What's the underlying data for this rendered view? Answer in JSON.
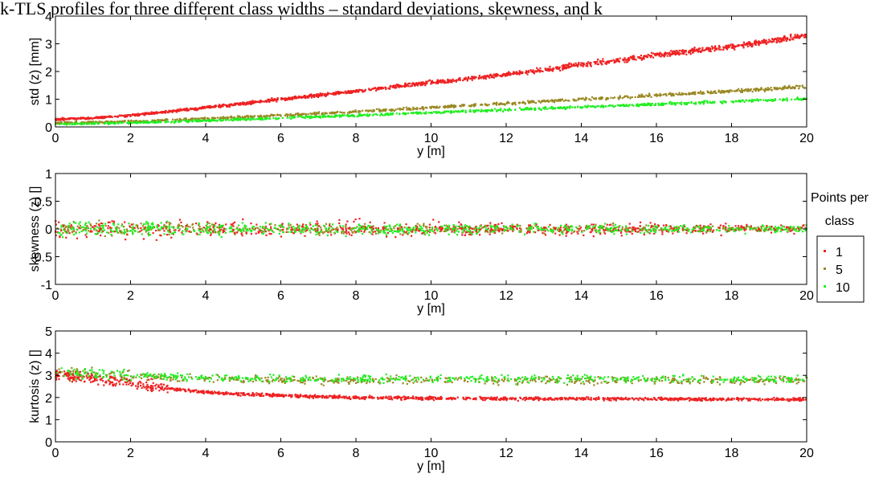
{
  "title": "k-TLS profiles for three different class widths – standard deviations, skewness, and k",
  "legend": {
    "title_line1": "Points per",
    "title_line2": "class",
    "entries": [
      {
        "label": "1",
        "color": "#ee2222"
      },
      {
        "label": "5",
        "color": "#998822"
      },
      {
        "label": "10",
        "color": "#22ee22"
      }
    ]
  },
  "chart_data": [
    {
      "type": "scatter",
      "xlabel": "y [m]",
      "ylabel": "std (z) [mm]",
      "xlim": [
        0,
        20
      ],
      "ylim": [
        0,
        4
      ],
      "xticks": [
        0,
        2,
        4,
        6,
        8,
        10,
        12,
        14,
        16,
        18,
        20
      ],
      "yticks": [
        0,
        1,
        2,
        3,
        4
      ],
      "series": [
        {
          "name": "1",
          "color": "#ee2222",
          "x": [
            0,
            1,
            2,
            3,
            4,
            5,
            6,
            7,
            8,
            9,
            10,
            11,
            12,
            13,
            14,
            15,
            16,
            17,
            18,
            19,
            20
          ],
          "y": [
            0.28,
            0.32,
            0.42,
            0.55,
            0.7,
            0.85,
            1.0,
            1.15,
            1.3,
            1.45,
            1.6,
            1.75,
            1.9,
            2.05,
            2.25,
            2.4,
            2.6,
            2.75,
            2.9,
            3.1,
            3.3
          ]
        },
        {
          "name": "5",
          "color": "#998822",
          "x": [
            0,
            2,
            4,
            6,
            8,
            10,
            12,
            14,
            16,
            18,
            20
          ],
          "y": [
            0.15,
            0.2,
            0.3,
            0.42,
            0.55,
            0.7,
            0.85,
            1.0,
            1.15,
            1.3,
            1.45
          ]
        },
        {
          "name": "10",
          "color": "#22ee22",
          "x": [
            0,
            2,
            4,
            6,
            8,
            10,
            12,
            14,
            16,
            18,
            20
          ],
          "y": [
            0.1,
            0.15,
            0.23,
            0.32,
            0.42,
            0.52,
            0.62,
            0.72,
            0.82,
            0.92,
            1.02
          ]
        }
      ]
    },
    {
      "type": "scatter",
      "xlabel": "y [m]",
      "ylabel": "skewness (z) []",
      "xlim": [
        0,
        20
      ],
      "ylim": [
        -1,
        1
      ],
      "xticks": [
        0,
        2,
        4,
        6,
        8,
        10,
        12,
        14,
        16,
        18,
        20
      ],
      "yticks": [
        -1,
        -0.5,
        0,
        0.5,
        1
      ],
      "series": [
        {
          "name": "1",
          "color": "#ee2222",
          "x": [
            0,
            20
          ],
          "y": [
            0.0,
            0.0
          ],
          "spread": [
            0.15,
            0.08
          ]
        },
        {
          "name": "5",
          "color": "#998822",
          "x": [
            0,
            20
          ],
          "y": [
            0.0,
            0.0
          ],
          "spread": [
            0.1,
            0.05
          ]
        },
        {
          "name": "10",
          "color": "#22ee22",
          "x": [
            0,
            20
          ],
          "y": [
            0.0,
            0.0
          ],
          "spread": [
            0.12,
            0.06
          ]
        }
      ]
    },
    {
      "type": "scatter",
      "xlabel": "y [m]",
      "ylabel": "kurtosis (z) []",
      "xlim": [
        0,
        20
      ],
      "ylim": [
        0,
        5
      ],
      "xticks": [
        0,
        2,
        4,
        6,
        8,
        10,
        12,
        14,
        16,
        18,
        20
      ],
      "yticks": [
        0,
        1,
        2,
        3,
        4,
        5
      ],
      "series": [
        {
          "name": "1",
          "color": "#ee2222",
          "x": [
            0,
            1,
            2,
            3,
            4,
            5,
            6,
            7,
            8,
            10,
            12,
            14,
            16,
            18,
            20
          ],
          "y": [
            3.0,
            2.85,
            2.65,
            2.4,
            2.25,
            2.15,
            2.1,
            2.05,
            2.0,
            1.97,
            1.95,
            1.95,
            1.93,
            1.92,
            1.92
          ]
        },
        {
          "name": "5",
          "color": "#998822",
          "x": [
            0,
            1,
            2,
            4,
            6,
            8,
            10,
            12,
            14,
            16,
            18,
            20
          ],
          "y": [
            3.1,
            3.05,
            2.95,
            2.85,
            2.8,
            2.78,
            2.78,
            2.78,
            2.78,
            2.78,
            2.78,
            2.78
          ]
        },
        {
          "name": "10",
          "color": "#22ee22",
          "x": [
            0,
            1,
            2,
            4,
            6,
            8,
            10,
            12,
            14,
            16,
            18,
            20
          ],
          "y": [
            3.15,
            3.1,
            3.0,
            2.9,
            2.85,
            2.85,
            2.85,
            2.85,
            2.85,
            2.85,
            2.85,
            2.85
          ]
        }
      ]
    }
  ]
}
